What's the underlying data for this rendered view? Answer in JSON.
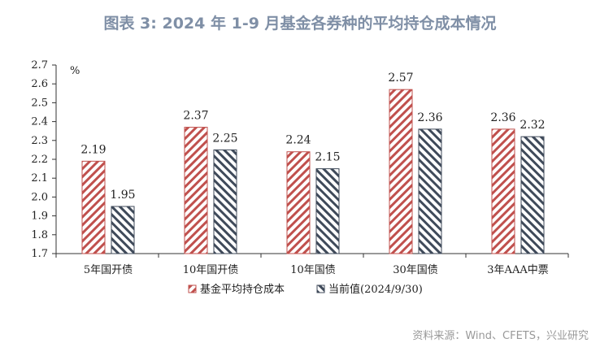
{
  "title": "图表 3:  2024 年 1-9 月基金各券种的平均持仓成本情况",
  "source": "资料来源：Wind、CFETS，兴业研究",
  "chart_data": {
    "type": "bar",
    "title": "图表 3:  2024 年 1-9 月基金各券种的平均持仓成本情况",
    "ylabel": "%",
    "ylim": [
      1.7,
      2.7
    ],
    "yticks": [
      "1.7",
      "1.8",
      "1.9",
      "2.0",
      "2.1",
      "2.2",
      "2.3",
      "2.4",
      "2.5",
      "2.6",
      "2.7"
    ],
    "grid": false,
    "legend": "bottom",
    "categories": [
      "5年国开债",
      "10年国开债",
      "10年国债",
      "30年国债",
      "3年AAA中票"
    ],
    "series": [
      {
        "name": "基金平均持仓成本",
        "values": [
          2.19,
          2.37,
          2.24,
          2.57,
          2.36
        ],
        "color": "#c0504d",
        "pattern": "diagonal-stripes"
      },
      {
        "name": "当前值(2024/9/30)",
        "values": [
          1.95,
          2.25,
          2.15,
          2.36,
          2.32
        ],
        "color": "#3f4a5a",
        "pattern": "diagonal-stripes"
      }
    ]
  }
}
